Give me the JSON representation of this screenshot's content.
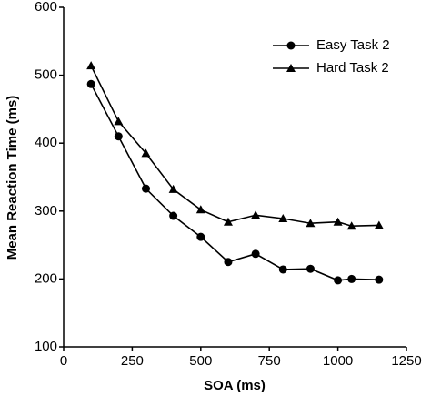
{
  "chart_data": {
    "type": "line",
    "xlabel": "SOA (ms)",
    "ylabel": "Mean Reaction Time (ms)",
    "x": [
      100,
      200,
      300,
      400,
      500,
      600,
      700,
      800,
      900,
      1000,
      1050,
      1150
    ],
    "series": [
      {
        "name": "Easy Task 2",
        "color": "#000000",
        "marker": "circle",
        "values": [
          487,
          410,
          333,
          293,
          262,
          225,
          237,
          214,
          215,
          198,
          200,
          199
        ]
      },
      {
        "name": "Hard Task 2",
        "color": "#000000",
        "marker": "triangle",
        "values": [
          514,
          432,
          385,
          332,
          302,
          284,
          294,
          289,
          282,
          284,
          278,
          279
        ]
      }
    ],
    "xlim": [
      0,
      1250
    ],
    "xticks": [
      0,
      250,
      500,
      750,
      1000,
      1250
    ],
    "ylim": [
      100,
      600
    ],
    "yticks": [
      100,
      200,
      300,
      400,
      500,
      600
    ],
    "grid": false,
    "legend": "upper right"
  }
}
